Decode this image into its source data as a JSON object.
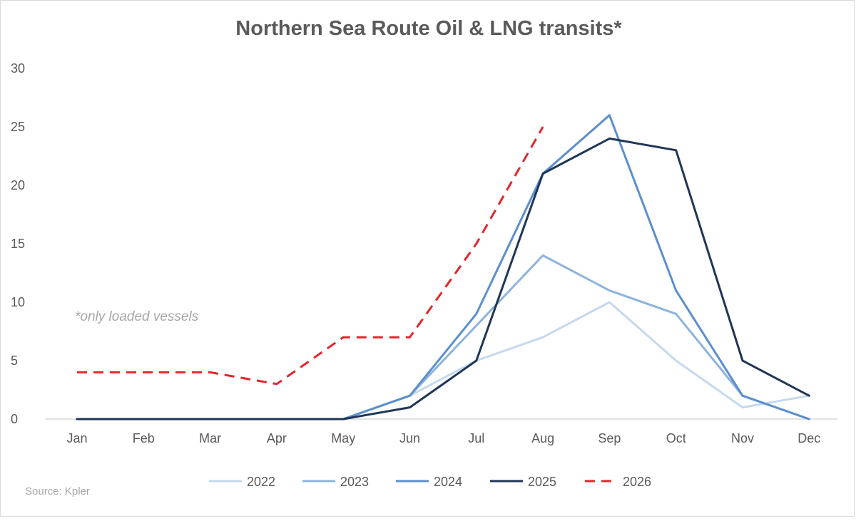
{
  "chart_data": {
    "type": "line",
    "title": "Northern Sea Route Oil & LNG transits*",
    "annotation": "*only loaded vessels",
    "source": "Source: Kpler",
    "categories": [
      "Jan",
      "Feb",
      "Mar",
      "Apr",
      "May",
      "Jun",
      "Jul",
      "Aug",
      "Sep",
      "Oct",
      "Nov",
      "Dec"
    ],
    "ylim": [
      0,
      30
    ],
    "yticks": [
      0,
      5,
      10,
      15,
      20,
      25,
      30
    ],
    "grid": false,
    "legend_position": "bottom",
    "series": [
      {
        "name": "2022",
        "color": "#c5d9ef",
        "dashed": false,
        "values": [
          0,
          0,
          0,
          0,
          0,
          2,
          5,
          7,
          10,
          5,
          1,
          2
        ]
      },
      {
        "name": "2023",
        "color": "#8db4dc",
        "dashed": false,
        "values": [
          0,
          0,
          0,
          0,
          0,
          2,
          8,
          14,
          11,
          9,
          2,
          0
        ]
      },
      {
        "name": "2024",
        "color": "#5b8fcd",
        "dashed": false,
        "values": [
          0,
          0,
          0,
          0,
          0,
          2,
          9,
          21,
          26,
          11,
          2,
          0
        ]
      },
      {
        "name": "2025",
        "color": "#1f3656",
        "dashed": false,
        "values": [
          0,
          0,
          0,
          0,
          0,
          1,
          5,
          21,
          24,
          23,
          5,
          2
        ]
      },
      {
        "name": "2026",
        "color": "#e3262b",
        "dashed": true,
        "values": [
          4,
          4,
          4,
          3,
          7,
          7,
          15,
          25,
          null,
          null,
          null,
          null
        ]
      }
    ]
  }
}
